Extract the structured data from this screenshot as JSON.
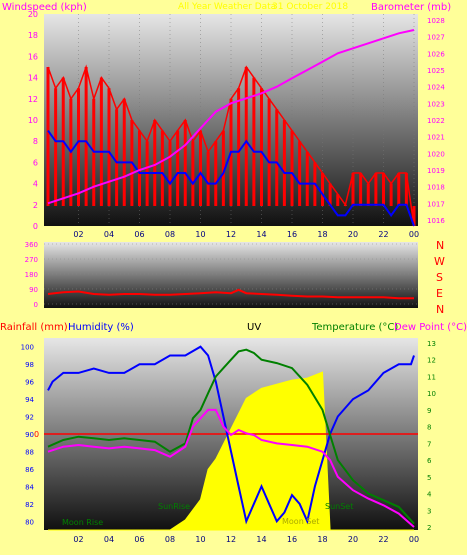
{
  "chart_data": [
    {
      "type": "line",
      "title": "All Year Weather Data",
      "subtitle": "31 October 2018",
      "ylabel_left": "Windspeed (kph)",
      "ylabel_right": "Barometer (mb)",
      "ylim_left": [
        0,
        20
      ],
      "yticks_left": [
        "0",
        "2",
        "4",
        "6",
        "8",
        "10",
        "12",
        "14",
        "16",
        "18",
        "20"
      ],
      "ylim_right": [
        1016,
        1028
      ],
      "yticks_right": [
        "1016",
        "1017",
        "1018",
        "1019",
        "1020",
        "1021",
        "1022",
        "1023",
        "1024",
        "1025",
        "1026",
        "1027",
        "1028"
      ],
      "xlim": [
        0,
        24
      ],
      "xticks": [
        "02",
        "04",
        "06",
        "08",
        "10",
        "12",
        "14",
        "16",
        "18",
        "20",
        "22",
        "00"
      ],
      "series": [
        {
          "color": "#ff0000",
          "axis": "left",
          "x": [
            0,
            0.5,
            1,
            1.5,
            2,
            2.5,
            3,
            3.5,
            4,
            4.5,
            5,
            5.5,
            6,
            6.5,
            7,
            7.5,
            8,
            8.5,
            9,
            9.5,
            10,
            10.5,
            11,
            11.5,
            12,
            12.5,
            13,
            13.5,
            14,
            14.5,
            15,
            15.5,
            16,
            16.5,
            17,
            17.5,
            18,
            18.5,
            19,
            19.5,
            20,
            20.5,
            21,
            21.5,
            22,
            22.5,
            23,
            23.5,
            24
          ],
          "y": [
            15,
            13,
            14,
            12,
            13,
            15,
            12,
            14,
            13,
            11,
            12,
            10,
            9,
            8,
            10,
            9,
            8,
            9,
            10,
            8,
            9,
            7,
            8,
            9,
            12,
            13,
            15,
            14,
            13,
            12,
            11,
            10,
            9,
            8,
            7,
            6,
            5,
            4,
            3,
            2,
            5,
            5,
            4,
            5,
            5,
            4,
            5,
            5,
            0
          ]
        },
        {
          "color": "#0000ff",
          "axis": "left",
          "x": [
            0,
            0.5,
            1,
            1.5,
            2,
            2.5,
            3,
            3.5,
            4,
            4.5,
            5,
            5.5,
            6,
            6.5,
            7,
            7.5,
            8,
            8.5,
            9,
            9.5,
            10,
            10.5,
            11,
            11.5,
            12,
            12.5,
            13,
            13.5,
            14,
            14.5,
            15,
            15.5,
            16,
            16.5,
            17,
            17.5,
            18,
            18.5,
            19,
            19.5,
            20,
            20.5,
            21,
            21.5,
            22,
            22.5,
            23,
            23.5,
            24
          ],
          "y": [
            9,
            8,
            8,
            7,
            8,
            8,
            7,
            7,
            7,
            6,
            6,
            6,
            5,
            5,
            5,
            5,
            4,
            5,
            5,
            4,
            5,
            4,
            4,
            5,
            7,
            7,
            8,
            7,
            7,
            6,
            6,
            5,
            5,
            4,
            4,
            4,
            3,
            2,
            1,
            1,
            2,
            2,
            2,
            2,
            2,
            1,
            2,
            2,
            0
          ]
        },
        {
          "color": "#ff00ff",
          "axis": "right",
          "x": [
            0,
            1,
            2,
            3,
            4,
            5,
            6,
            7,
            8,
            9,
            10,
            11,
            12,
            13,
            14,
            15,
            16,
            17,
            18,
            19,
            20,
            21,
            22,
            23,
            24
          ],
          "y": [
            1017,
            1017.3,
            1017.6,
            1018,
            1018.3,
            1018.6,
            1019,
            1019.3,
            1019.8,
            1020.5,
            1021.5,
            1022.5,
            1023,
            1023.3,
            1023.6,
            1024,
            1024.5,
            1025,
            1025.5,
            1026,
            1026.3,
            1026.6,
            1026.9,
            1027.2,
            1027.4
          ]
        }
      ]
    },
    {
      "type": "line",
      "ylim": [
        0,
        360
      ],
      "yticks": [
        "0",
        "90",
        "180",
        "270",
        "360"
      ],
      "compass": [
        "N",
        "W",
        "S",
        "E",
        "N"
      ],
      "series": [
        {
          "color": "#ff0000",
          "x": [
            0,
            1,
            2,
            3,
            4,
            5,
            6,
            7,
            8,
            9,
            10,
            11,
            12,
            12.5,
            13,
            14,
            15,
            16,
            17,
            18,
            19,
            20,
            21,
            22,
            23,
            24
          ],
          "y": [
            60,
            70,
            75,
            60,
            55,
            60,
            60,
            55,
            55,
            60,
            65,
            70,
            65,
            85,
            65,
            60,
            55,
            50,
            45,
            45,
            40,
            40,
            40,
            40,
            35,
            35
          ]
        }
      ]
    },
    {
      "type": "line",
      "labels": {
        "rainfall": "Rainfall (mm)",
        "humidity": "Humidity (%)",
        "uv": "UV",
        "temperature": "Temperature (°C)",
        "dewpoint": "Dew Point (°C)"
      },
      "ylim_humidity": [
        79,
        101
      ],
      "yticks_humidity": [
        "80",
        "82",
        "84",
        "86",
        "88",
        "90",
        "92",
        "94",
        "96",
        "98",
        "100"
      ],
      "ylim_temp": [
        2,
        13
      ],
      "yticks_temp": [
        "2",
        "3",
        "4",
        "5",
        "6",
        "7",
        "8",
        "9",
        "10",
        "11",
        "12",
        "13"
      ],
      "rain_zero_label": "0",
      "annotations": [
        "Moon Rise",
        "SunRise",
        "SunSet",
        "Moon Set"
      ],
      "series": [
        {
          "name": "humidity",
          "color": "#0000ff",
          "x": [
            0,
            0.3,
            1,
            2,
            3,
            4,
            5,
            6,
            7,
            8,
            9,
            10,
            10.5,
            11,
            11.5,
            12,
            12.5,
            13,
            13.5,
            14,
            14.5,
            15,
            15.5,
            16,
            16.5,
            17,
            17.5,
            18,
            18.5,
            19,
            20,
            21,
            22,
            23,
            23.8,
            24
          ],
          "y": [
            95,
            96,
            97,
            97,
            97.5,
            97,
            97,
            98,
            98,
            99,
            99,
            100,
            99,
            96,
            92,
            88,
            84,
            80,
            82,
            84,
            82,
            80,
            81,
            83,
            82,
            80,
            84,
            87,
            90,
            92,
            94,
            95,
            97,
            98,
            98,
            99
          ]
        },
        {
          "name": "temperature",
          "color": "#008000",
          "x": [
            0,
            1,
            2,
            3,
            4,
            5,
            6,
            7,
            8,
            9,
            9.5,
            10,
            10.5,
            11,
            11.5,
            12,
            12.5,
            13,
            13.5,
            14,
            15,
            16,
            17,
            18,
            18.5,
            19,
            20,
            21,
            22,
            23,
            24
          ],
          "y": [
            6.8,
            7.2,
            7.4,
            7.3,
            7.2,
            7.3,
            7.2,
            7.1,
            6.5,
            7,
            8.5,
            9,
            10,
            11,
            11.5,
            12,
            12.5,
            12.6,
            12.4,
            12,
            11.8,
            11.5,
            10.5,
            9,
            7.5,
            6,
            4.8,
            4,
            3.6,
            3.2,
            2.2
          ]
        },
        {
          "name": "dewpoint",
          "color": "#ff00ff",
          "x": [
            0,
            1,
            2,
            3,
            4,
            5,
            6,
            7,
            8,
            9,
            9.5,
            10,
            10.5,
            11,
            11.5,
            12,
            12.5,
            13,
            13.5,
            14,
            15,
            16,
            17,
            18,
            18.5,
            19,
            20,
            21,
            22,
            23,
            24
          ],
          "y": [
            6.5,
            6.8,
            6.9,
            6.8,
            6.7,
            6.8,
            6.7,
            6.6,
            6.2,
            6.8,
            8,
            8.5,
            9,
            9,
            8,
            7.5,
            7.8,
            7.6,
            7.5,
            7.2,
            7,
            6.9,
            6.8,
            6.5,
            6,
            5,
            4.2,
            3.7,
            3.3,
            2.8,
            2
          ]
        },
        {
          "name": "uv",
          "color": "#ffff00",
          "x": [
            0,
            8,
            9,
            10,
            10.5,
            11,
            12,
            13,
            14,
            15,
            16,
            17,
            18,
            18.5,
            19,
            24
          ],
          "y": [
            0,
            0,
            0.5,
            1.5,
            3,
            3.5,
            5,
            6.5,
            7,
            7.2,
            7.4,
            7.5,
            7.8,
            0,
            0,
            0
          ]
        }
      ]
    }
  ]
}
